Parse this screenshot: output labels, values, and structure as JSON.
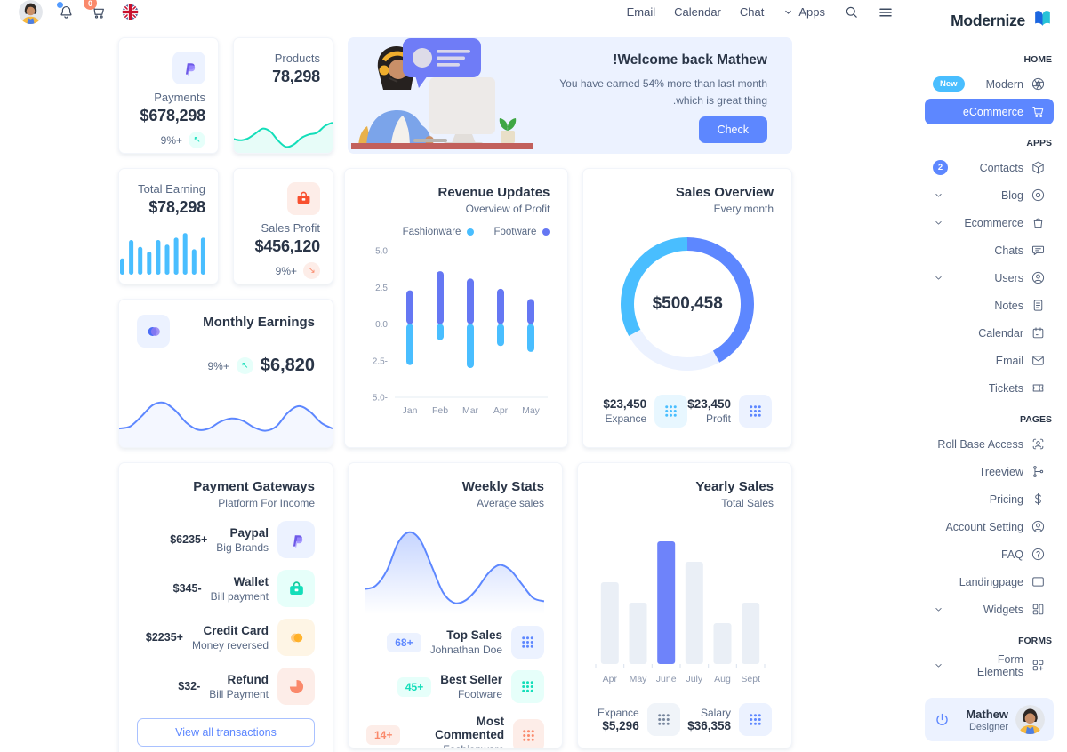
{
  "theme": {
    "primary": "#5D87FF",
    "secondary": "#49BEFF",
    "success": "#13DEB9",
    "warning": "#FFAE1F",
    "error": "#FA896B",
    "primary_light": "#ECF2FF",
    "text_dark": "#2A3547",
    "text_gray": "#5A6A85"
  },
  "topbar": {
    "logo_text": "Modernize",
    "cart_badge": "0",
    "nav_links": [
      {
        "label": "Email"
      },
      {
        "label": "Calendar"
      },
      {
        "label": "Chat"
      },
      {
        "label": "Apps",
        "chevron": true
      }
    ],
    "icons": [
      "user-avatar",
      "bell-icon",
      "cart-icon",
      "uk-flag-icon",
      "search-icon",
      "menu-icon"
    ]
  },
  "sidebar": {
    "sections": [
      {
        "title": "HOME",
        "items": [
          {
            "label": "Modern",
            "icon": "aperture-icon",
            "badge": {
              "text": "New",
              "type": "pill"
            }
          },
          {
            "label": "eCommerce",
            "icon": "cart-line-icon",
            "active": true
          }
        ]
      },
      {
        "title": "APPS",
        "items": [
          {
            "label": "Contacts",
            "icon": "box-icon",
            "badge": {
              "text": "2",
              "type": "circle"
            }
          },
          {
            "label": "Blog",
            "icon": "disc-icon",
            "chevron": true
          },
          {
            "label": "Ecommerce",
            "icon": "basket-icon",
            "chevron": true
          },
          {
            "label": "Chats",
            "icon": "message-icon"
          },
          {
            "label": "Users",
            "icon": "user-circle-icon",
            "chevron": true
          },
          {
            "label": "Notes",
            "icon": "note-icon"
          },
          {
            "label": "Calendar",
            "icon": "calendar-icon"
          },
          {
            "label": "Email",
            "icon": "mail-icon"
          },
          {
            "label": "Tickets",
            "icon": "ticket-icon"
          }
        ]
      },
      {
        "title": "PAGES",
        "items": [
          {
            "label": "Roll Base Access",
            "icon": "user-scan-icon"
          },
          {
            "label": "Treeview",
            "icon": "tree-icon"
          },
          {
            "label": "Pricing",
            "icon": "dollar-icon"
          },
          {
            "label": "Account Setting",
            "icon": "user-circle-icon"
          },
          {
            "label": "FAQ",
            "icon": "help-icon"
          },
          {
            "label": "Landingpage",
            "icon": "browser-icon"
          },
          {
            "label": "Widgets",
            "icon": "widgets-icon",
            "chevron": true
          }
        ]
      },
      {
        "title": "FORMS",
        "items": [
          {
            "label": "Form Elements",
            "icon": "form-icon",
            "chevron": true
          }
        ]
      }
    ],
    "profile": {
      "name": "Mathew",
      "role": "Designer"
    }
  },
  "cards": {
    "products": {
      "label": "Products",
      "value": "78,298"
    },
    "payments": {
      "label": "Payments",
      "value": "$678,298",
      "delta": "9%+",
      "delta_direction": "up"
    },
    "welcome": {
      "title": "Welcome back Mathew!",
      "body": "You have earned 54% more than last month which is great thing.",
      "button": "Check"
    },
    "sales_profit": {
      "label": "Sales Profit",
      "value": "$456,120",
      "delta": "9%+",
      "delta_direction": "down"
    },
    "total_earning": {
      "label": "Total Earning",
      "value": "$78,298"
    },
    "sales_overview": {
      "title": "Sales Overview",
      "subtitle": "Every month",
      "stats": [
        {
          "value": "$23,450",
          "label": "Profit",
          "style": "lavender"
        },
        {
          "value": "$23,450",
          "label": "Expance",
          "style": "sky"
        }
      ]
    },
    "revenue_updates": {
      "title": "Revenue Updates",
      "subtitle": "Overview of Profit",
      "legend": [
        {
          "label": "Fashionware",
          "color": "#49BEFF"
        },
        {
          "label": "Footware",
          "color": "#6577F3"
        }
      ]
    },
    "monthly_earnings": {
      "title": "Monthly Earnings",
      "value": "$6,820",
      "delta": "9%+",
      "delta_direction": "up"
    },
    "payment_gateways": {
      "title": "Payment Gateways",
      "subtitle": "Platform For Income",
      "button": "View all transactions",
      "rows": [
        {
          "name": "Paypal",
          "desc": "Big Brands",
          "amount": "$6235+",
          "icon": "paypal-icon",
          "style": "lavender"
        },
        {
          "name": "Wallet",
          "desc": "Bill payment",
          "amount": "$345-",
          "icon": "wallet-icon",
          "style": "teal"
        },
        {
          "name": "Credit Card",
          "desc": "Money reversed",
          "amount": "$2235+",
          "icon": "credit-card-icon",
          "style": "orange"
        },
        {
          "name": "Refund",
          "desc": "Bill Payment",
          "amount": "$32-",
          "icon": "refund-pie-icon",
          "style": "red"
        }
      ]
    },
    "yearly_sales": {
      "title": "Yearly Sales",
      "subtitle": "Total Sales",
      "stats": [
        {
          "label": "Salary",
          "value": "$36,358",
          "style": "lavender"
        },
        {
          "label": "Expance",
          "value": "$5,296",
          "style": "gray"
        }
      ]
    },
    "weekly_stats": {
      "title": "Weekly Stats",
      "subtitle": "Average sales",
      "rows": [
        {
          "title": "Top Sales",
          "subtitle": "Johnathan Doe",
          "badge": "68+",
          "style": "blue"
        },
        {
          "title": "Best Seller",
          "subtitle": "Footware",
          "badge": "45+",
          "style": "teal"
        },
        {
          "title": "Most Commented",
          "subtitle": "Fashionware",
          "badge": "14+",
          "style": "red"
        }
      ]
    }
  },
  "chart_data": [
    {
      "id": "products_spark",
      "type": "area",
      "name": "Products trend",
      "values": [
        30,
        26,
        30,
        42,
        54,
        46,
        24,
        10,
        16,
        32,
        40,
        44,
        60,
        68
      ],
      "color": "#13DEB9",
      "fill": "rgba(19,222,185,0.10)"
    },
    {
      "id": "total_earning_bars",
      "type": "bar",
      "name": "Total Earning",
      "values": [
        35,
        75,
        60,
        50,
        75,
        65,
        80,
        90,
        55,
        80
      ],
      "color": "#49BEFF"
    },
    {
      "id": "sales_overview_donut",
      "type": "pie",
      "center_label": "$500,458",
      "segments": [
        {
          "label": "Profit",
          "value": 42,
          "color": "#5D87FF"
        },
        {
          "label": "Other",
          "value": 25,
          "color": "#ECF2FF"
        },
        {
          "label": "Expance",
          "value": 33,
          "color": "#49BEFF"
        }
      ]
    },
    {
      "id": "revenue_updates",
      "type": "bar",
      "categories": [
        "Jan",
        "Feb",
        "Mar",
        "Apr",
        "May"
      ],
      "ylim": [
        -5,
        5
      ],
      "yticks": [
        "5.0",
        "2.5",
        "0.0",
        "2.5-",
        "5.0-"
      ],
      "series": [
        {
          "name": "Footware",
          "values": [
            2.3,
            3.6,
            3.1,
            2.4,
            1.7
          ],
          "color": "#6577F3"
        },
        {
          "name": "Fashionware",
          "values": [
            -2.8,
            -1.1,
            -3.0,
            -1.5,
            -1.9
          ],
          "color": "#49BEFF"
        }
      ]
    },
    {
      "id": "monthly_earnings_line",
      "type": "area",
      "name": "Monthly Earnings",
      "values": [
        30,
        34,
        52,
        72,
        76,
        62,
        40,
        28,
        30,
        42,
        48,
        44,
        32,
        26,
        34,
        58,
        70,
        60,
        40,
        30
      ],
      "color": "#5D87FF",
      "fill": "rgba(93,135,255,0.07)"
    },
    {
      "id": "yearly_sales",
      "type": "bar",
      "categories": [
        "Apr",
        "May",
        "June",
        "July",
        "Aug",
        "Sept"
      ],
      "values": [
        40,
        30,
        60,
        50,
        20,
        30
      ],
      "highlight_index": 2,
      "color": "#EAEFF6",
      "highlight_color": "#6E83FA"
    },
    {
      "id": "weekly_stats_line",
      "type": "area",
      "name": "Weekly Stats",
      "values": [
        26,
        30,
        48,
        80,
        92,
        82,
        52,
        22,
        10,
        13,
        26,
        44,
        54,
        48,
        32,
        16,
        12
      ],
      "color": "#5D87FF",
      "fill": "gradient"
    }
  ]
}
